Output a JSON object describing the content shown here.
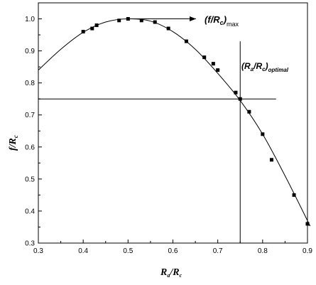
{
  "chart_data": {
    "type": "line",
    "xlim": [
      0.3,
      0.9
    ],
    "ylim": [
      0.3,
      1.05
    ],
    "x_ticks": [
      "0.3",
      "0.4",
      "0.5",
      "0.6",
      "0.7",
      "0.8",
      "0.9"
    ],
    "y_ticks": [
      "0.3",
      "0.4",
      "0.5",
      "0.6",
      "0.7",
      "0.8",
      "0.9",
      "1.0"
    ],
    "xlabel": {
      "main": "R",
      "sub1": "a",
      "slash": "/R",
      "sub2": "c"
    },
    "ylabel": {
      "main": "f/R",
      "sub": "c"
    },
    "curve": {
      "x": [
        0.3,
        0.35,
        0.4,
        0.45,
        0.5,
        0.55,
        0.6,
        0.65,
        0.7,
        0.75,
        0.8,
        0.85,
        0.9,
        0.905
      ],
      "y": [
        0.84,
        0.905,
        0.958,
        0.99,
        1.0,
        0.993,
        0.96,
        0.905,
        0.83,
        0.745,
        0.64,
        0.51,
        0.37,
        0.355
      ]
    },
    "markers": {
      "x": [
        0.4,
        0.42,
        0.43,
        0.48,
        0.5,
        0.53,
        0.56,
        0.59,
        0.63,
        0.67,
        0.69,
        0.7,
        0.74,
        0.75,
        0.77,
        0.8,
        0.82,
        0.87,
        0.9
      ],
      "y": [
        0.96,
        0.97,
        0.98,
        0.995,
        1.0,
        0.995,
        0.99,
        0.97,
        0.93,
        0.88,
        0.86,
        0.84,
        0.77,
        0.75,
        0.71,
        0.64,
        0.56,
        0.45,
        0.36
      ]
    },
    "reference_lines": {
      "horizontal_y": 0.75,
      "horizontal_x_range": [
        0.3,
        0.83
      ],
      "vertical_x": 0.75,
      "vertical_y_range": [
        0.3,
        0.93
      ]
    },
    "annotations": {
      "max_label": {
        "open": "(f/R",
        "sub": "c",
        "close": ")",
        "subscript": "max"
      },
      "opt_label": {
        "open": "(R",
        "sub1": "a",
        "mid": "/R",
        "sub2": "c",
        "close": ")",
        "subscript": "optimal"
      }
    }
  }
}
